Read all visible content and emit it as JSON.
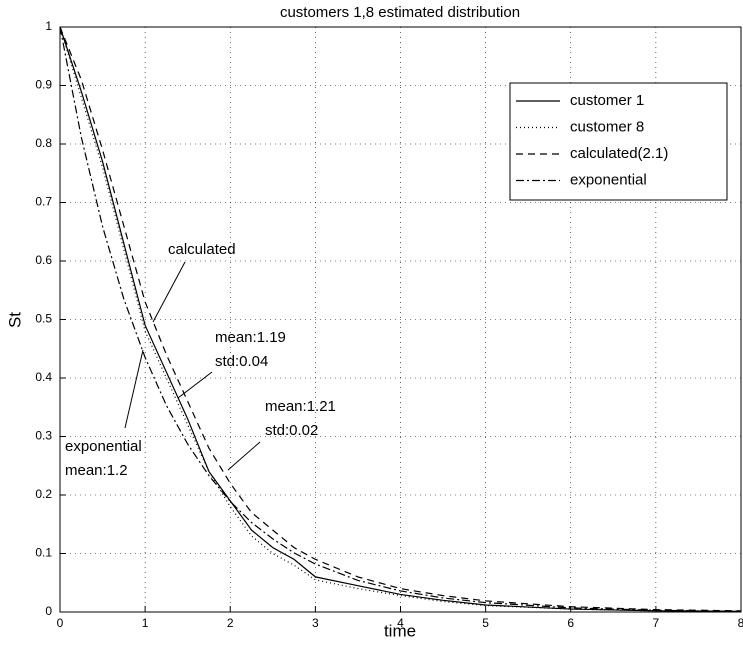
{
  "chart_data": {
    "type": "line",
    "title": "customers 1,8  estimated distribution",
    "x_label": "time",
    "y_label": "St",
    "x": [
      0,
      0.25,
      0.5,
      0.75,
      1,
      1.25,
      1.5,
      1.75,
      2,
      2.25,
      2.5,
      2.75,
      3,
      3.5,
      4,
      4.5,
      5,
      6,
      7,
      8
    ],
    "series": [
      {
        "name": "customer 1",
        "color": "#000000",
        "dash": "solid",
        "values": [
          1,
          0.89,
          0.77,
          0.63,
          0.49,
          0.41,
          0.33,
          0.24,
          0.19,
          0.14,
          0.11,
          0.09,
          0.06,
          0.045,
          0.03,
          0.02,
          0.012,
          0.005,
          0.002,
          0.001
        ]
      },
      {
        "name": "customer 8",
        "color": "#000000",
        "dash": "dotted",
        "values": [
          1,
          0.88,
          0.76,
          0.62,
          0.48,
          0.4,
          0.32,
          0.24,
          0.18,
          0.13,
          0.1,
          0.08,
          0.055,
          0.04,
          0.028,
          0.018,
          0.011,
          0.005,
          0.002,
          0.001
        ]
      },
      {
        "name": "calculated(2.1)",
        "color": "#000000",
        "dash": "dashed",
        "values": [
          1,
          0.91,
          0.79,
          0.66,
          0.53,
          0.44,
          0.36,
          0.28,
          0.22,
          0.17,
          0.14,
          0.11,
          0.09,
          0.06,
          0.04,
          0.028,
          0.019,
          0.009,
          0.004,
          0.002
        ]
      },
      {
        "name": "exponential",
        "color": "#000000",
        "dash": "dashdot",
        "values": [
          1,
          0.812,
          0.659,
          0.535,
          0.435,
          0.353,
          0.287,
          0.233,
          0.189,
          0.153,
          0.125,
          0.101,
          0.082,
          0.054,
          0.036,
          0.024,
          0.016,
          0.007,
          0.003,
          0.001
        ]
      }
    ],
    "xlim": [
      0,
      8
    ],
    "ylim": [
      0,
      1
    ],
    "xticks": [
      0,
      1,
      2,
      3,
      4,
      5,
      6,
      7,
      8
    ],
    "yticks": [
      0,
      0.1,
      0.2,
      0.3,
      0.4,
      0.5,
      0.6,
      0.7,
      0.8,
      0.9,
      1
    ],
    "grid": true,
    "legend_position": "upper right",
    "annotations": [
      [
        "calculated"
      ],
      [
        "mean:1.19",
        "std:0.04"
      ],
      [
        "mean:1.21",
        "std:0.02"
      ],
      [
        "exponential",
        "mean:1.2"
      ]
    ]
  }
}
